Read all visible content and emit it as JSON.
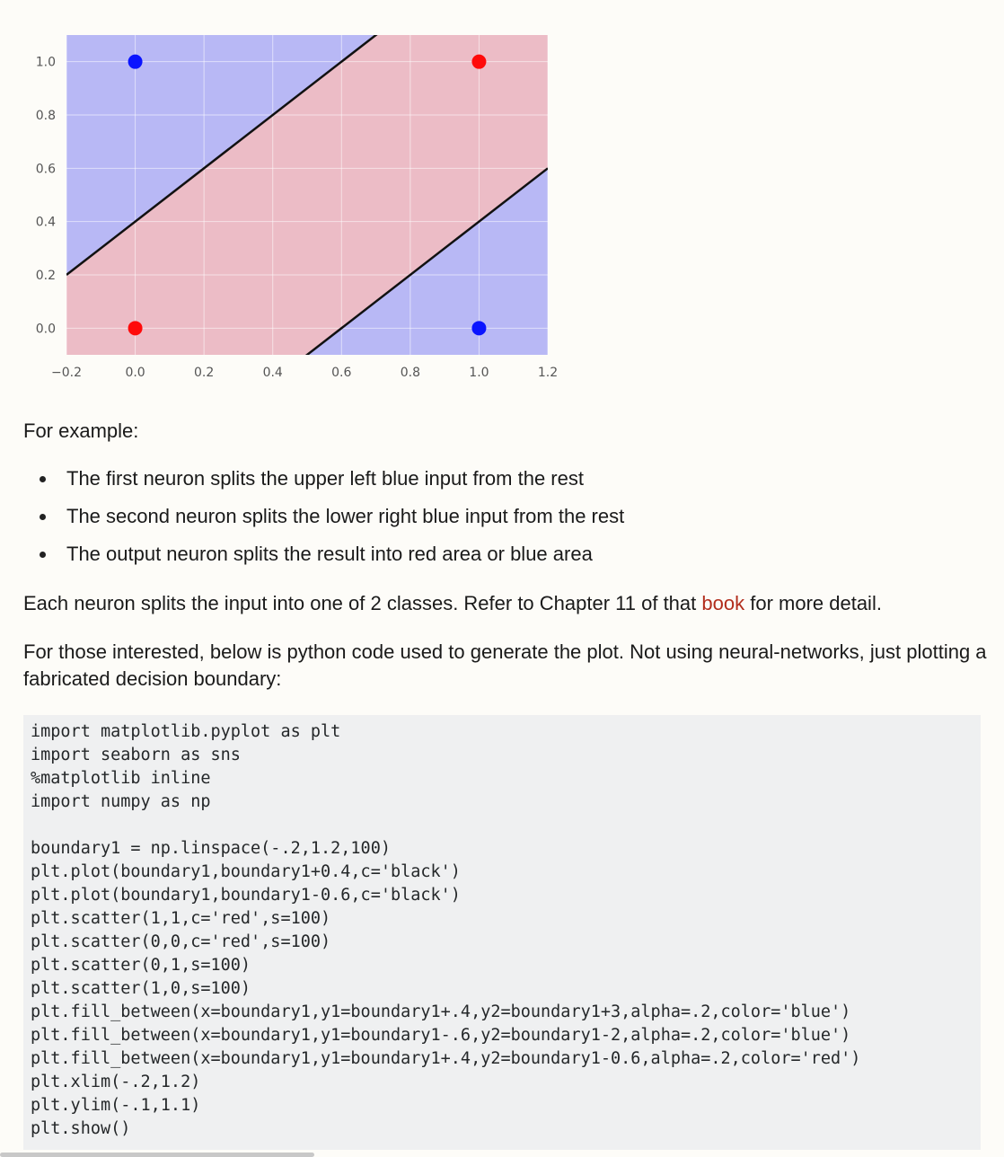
{
  "chart_data": {
    "type": "scatter",
    "xlim": [
      -0.2,
      1.2
    ],
    "ylim": [
      -0.1,
      1.1
    ],
    "x_ticks": [
      "−0.2",
      "0.0",
      "0.2",
      "0.4",
      "0.6",
      "0.8",
      "1.0",
      "1.2"
    ],
    "x_tick_values": [
      -0.2,
      0.0,
      0.2,
      0.4,
      0.6,
      0.8,
      1.0,
      1.2
    ],
    "y_ticks": [
      "1.0",
      "0.8",
      "0.6",
      "0.4",
      "0.2",
      "0.0"
    ],
    "y_tick_values": [
      1.0,
      0.8,
      0.6,
      0.4,
      0.2,
      0.0
    ],
    "grid": true,
    "points": [
      {
        "x": 0,
        "y": 1,
        "color": "#0a14ff"
      },
      {
        "x": 1,
        "y": 1,
        "color": "#ff0a0a"
      },
      {
        "x": 0,
        "y": 0,
        "color": "#ff0a0a"
      },
      {
        "x": 1,
        "y": 0,
        "color": "#0a14ff"
      }
    ],
    "lines": [
      {
        "slope": 1,
        "intercept": 0.4,
        "color": "#111111"
      },
      {
        "slope": 1,
        "intercept": -0.6,
        "color": "#111111"
      }
    ],
    "regions": {
      "blue": "#b8b8f5",
      "red": "#ecbcc6"
    }
  },
  "text": {
    "for_example": "For example:",
    "bullets": [
      "The first neuron splits the upper left blue input from the rest",
      "The second neuron splits the lower right blue input from the rest",
      "The output neuron splits the result into red area or blue area"
    ],
    "each_before": "Each neuron splits the input into one of 2 classes. Refer to Chapter 11 of that ",
    "each_link": "book",
    "each_after": " for more detail.",
    "those": "For those interested, below is python code used to generate the plot. Not using neural-networks, just plotting a fabricated decision boundary:"
  },
  "code_lines": [
    "import matplotlib.pyplot as plt",
    "import seaborn as sns",
    "%matplotlib inline",
    "import numpy as np",
    "",
    "boundary1 = np.linspace(-.2,1.2,100)",
    "plt.plot(boundary1,boundary1+0.4,c='black')",
    "plt.plot(boundary1,boundary1-0.6,c='black')",
    "plt.scatter(1,1,c='red',s=100)",
    "plt.scatter(0,0,c='red',s=100)",
    "plt.scatter(0,1,s=100)",
    "plt.scatter(1,0,s=100)",
    "plt.fill_between(x=boundary1,y1=boundary1+.4,y2=boundary1+3,alpha=.2,color='blue')",
    "plt.fill_between(x=boundary1,y1=boundary1-.6,y2=boundary1-2,alpha=.2,color='blue')",
    "plt.fill_between(x=boundary1,y1=boundary1+.4,y2=boundary1-0.6,alpha=.2,color='red')",
    "plt.xlim(-.2,1.2)",
    "plt.ylim(-.1,1.1)",
    "plt.show()"
  ]
}
